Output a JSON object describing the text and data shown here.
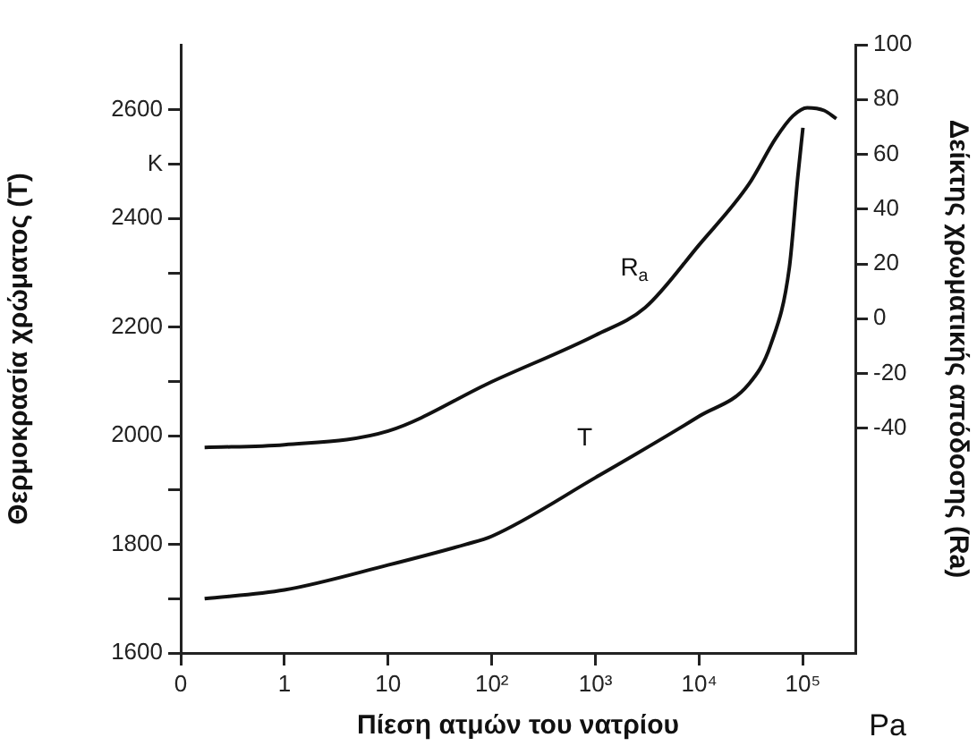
{
  "chart_data": {
    "type": "line",
    "xlabel": "Πίεση ατμών του νατρίου",
    "ylabel": "Θερμοκρασία χρώματος (T)",
    "y2label": "Δείκτης χρωματικής απόδοσης (Ra)",
    "log": "x",
    "xlim": [
      0.1,
      320000
    ],
    "xticks": [
      {
        "value": 0.1,
        "label": "0"
      },
      1,
      10,
      {
        "value": 100,
        "label": "10²"
      },
      {
        "value": 1000,
        "label": "10³"
      },
      {
        "value": 10000,
        "label": "10⁴"
      },
      {
        "value": 100000,
        "label": "10⁵"
      }
    ],
    "ylim": [
      1600,
      2720
    ],
    "yticks": [
      1600,
      {
        "value": 1700,
        "label": null
      },
      1800,
      {
        "value": 1900,
        "label": null
      },
      2000,
      {
        "value": 2100,
        "label": null
      },
      2200,
      {
        "value": 2300,
        "label": null
      },
      2400,
      {
        "value": 2500,
        "label": "K"
      },
      2600
    ],
    "y2lim": [
      -122,
      100
    ],
    "y2ticks": [
      -40,
      -20,
      0,
      20,
      40,
      60,
      80,
      100
    ],
    "series": [
      {
        "name": "R$_{a}$",
        "color": "#111111",
        "axis": "y2",
        "x": [
          0.17,
          1,
          10,
          100,
          1000,
          3000,
          10000,
          30000,
          55000,
          80000,
          110000,
          160000,
          210000
        ],
        "values": [
          -47,
          -46,
          -41,
          -23,
          -6,
          4,
          27,
          49,
          66,
          74,
          77,
          76,
          73
        ]
      },
      {
        "name": "T",
        "color": "#111111",
        "axis": "y",
        "x": [
          0.17,
          1,
          10,
          56,
          100,
          1000,
          10000,
          30000,
          49000,
          74000,
          89000,
          100000
        ],
        "values": [
          1700,
          1716,
          1762,
          1800,
          1815,
          1923,
          2036,
          2095,
          2168,
          2310,
          2475,
          2567
        ]
      }
    ],
    "annotations": [
      "Pa"
    ],
    "grid": false,
    "legend": false,
    "marker": "none",
    "line_style": "solid"
  }
}
